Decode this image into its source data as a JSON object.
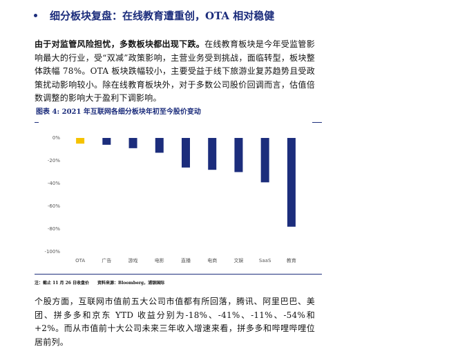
{
  "heading": "细分板块复盘：在线教育遭重创，OTA 相对稳健",
  "paragraph1": {
    "lead": "由于对监管风险担忧，多数板块都出现下跌。",
    "text": "在线教育板块是今年受监管影响最大的行业，受“双减”政策影响，主营业务受到挑战，面临转型，板块整体跌幅 78%。OTA 板块跌幅较小，主要受益于线下旅游业复苏趋势且受政策扰动影响较小。除在线教育板块外，对于多数公司股价回调而言，估值倍数调整的影响大于盈利下调影响。"
  },
  "figure_title": "图表 4: 2021 年互联网各细分板块年初至今股价变动",
  "chart_data": {
    "type": "bar",
    "categories": [
      "OTA",
      "广告",
      "游戏",
      "电影",
      "直播",
      "电商",
      "文娱",
      "SaaS",
      "教育"
    ],
    "values": [
      -5,
      -6,
      -9,
      -13,
      -26,
      -28,
      -30,
      -39,
      -78
    ],
    "colors": [
      "#f5c200",
      "#1c2d7c",
      "#1c2d7c",
      "#1c2d7c",
      "#1c2d7c",
      "#1c2d7c",
      "#1c2d7c",
      "#1c2d7c",
      "#1c2d7c"
    ],
    "ylim": [
      -100,
      0
    ],
    "yticks": [
      {
        "value": 0,
        "label": "0%"
      },
      {
        "value": -20,
        "label": "-20%"
      },
      {
        "value": -40,
        "label": "-40%"
      },
      {
        "value": -60,
        "label": "-60%"
      },
      {
        "value": -80,
        "label": "-80%"
      },
      {
        "value": -100,
        "label": "-100%"
      }
    ],
    "grid": false
  },
  "note": "注：截止 11 月 26 日收盘价　　资料来源：Bloomberg，浦银国际",
  "paragraph2": "个股方面，互联网市值前五大公司市值都有所回落，腾讯、阿里巴巴、美团、拼多多和京东 YTD 收益分别为-18%、-41%、-11%、-54%和+2%。而从市值前十大公司未来三年收入增速来看，拼多多和哔哩哔哩位居前列。"
}
